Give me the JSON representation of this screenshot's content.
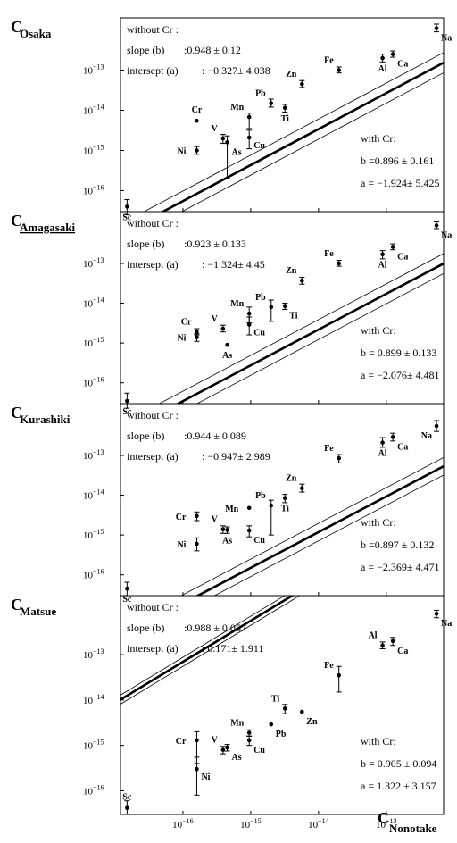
{
  "chart_data": {
    "type": "scatter",
    "x_scale": "log",
    "y_scale": "log",
    "x_axis": {
      "label": "C",
      "label_sub": "Nonotake",
      "ticks": [
        {
          "base": "10",
          "exp": "−16",
          "value": 1e-16
        },
        {
          "base": "10",
          "exp": "−15",
          "value": 1e-15
        },
        {
          "base": "10",
          "exp": "−14",
          "value": 1e-14
        },
        {
          "base": "10",
          "exp": "−13",
          "value": 1e-13
        }
      ],
      "range": [
        1.2e-17,
        7e-13
      ]
    },
    "y_ticks": [
      {
        "base": "10",
        "exp": "−16",
        "value": 1e-16
      },
      {
        "base": "10",
        "exp": "−15",
        "value": 1e-15
      },
      {
        "base": "10",
        "exp": "−14",
        "value": 1e-14
      },
      {
        "base": "10",
        "exp": "−13",
        "value": 1e-13
      }
    ],
    "y_range": [
      3e-17,
      2e-12
    ],
    "x_elements": {
      "Sc": 1.5e-17,
      "Ni": 1.6e-16,
      "Cr": 1.6e-16,
      "V": 3.9e-16,
      "As": 4.5e-16,
      "Cu": 9.5e-16,
      "Mn": 9.5e-16,
      "Pb": 2e-15,
      "Ti": 3.2e-15,
      "Zn": 5.7e-15,
      "Fe": 2e-14,
      "Al": 8.8e-14,
      "Ca": 1.25e-13,
      "Na": 5.5e-13
    },
    "panels": [
      {
        "ylabel": "C",
        "ylabel_sub": "Osaka",
        "ylabel_underline": false,
        "without_cr": {
          "title": "without Cr :",
          "slope_label": "slope (b)",
          "slope_val": ":0.948  ± 0.12",
          "intercept_label": "intersept (a)",
          "intercept_val": ": −0.327± 4.038"
        },
        "with_cr": {
          "title": "with Cr:",
          "b_line": "b =0.896  ± 0.161",
          "a_line": "a = −1.924± 5.425"
        },
        "fit": {
          "b": 0.896,
          "a": -1.924,
          "band_dex": 0.25
        },
        "points": [
          {
            "el": "Sc",
            "y": 4e-17,
            "lo": 2.5e-17,
            "hi": 6e-17,
            "lp": "below"
          },
          {
            "el": "Ni",
            "y": 1e-15,
            "lo": 8e-16,
            "hi": 1.25e-15,
            "lp": "left"
          },
          {
            "el": "Cr",
            "y": 5.5e-15,
            "lo": null,
            "hi": null,
            "lp": "above"
          },
          {
            "el": "V",
            "y": 2e-15,
            "lo": 1.5e-15,
            "hi": 2.5e-15,
            "lp": "left-up"
          },
          {
            "el": "As",
            "y": 1.6e-15,
            "lo": 2e-16,
            "hi": 2.3e-15,
            "lp": "below-right"
          },
          {
            "el": "Cu",
            "y": 2.1e-15,
            "lo": 1.1e-15,
            "hi": 3.2e-15,
            "lp": "right-down"
          },
          {
            "el": "Mn",
            "y": 6.8e-15,
            "lo": 3.5e-15,
            "hi": 8.5e-15,
            "lp": "left-up"
          },
          {
            "el": "Pb",
            "y": 1.5e-14,
            "lo": 1.2e-14,
            "hi": 1.9e-14,
            "lp": "left-up"
          },
          {
            "el": "Ti",
            "y": 1.15e-14,
            "lo": 9e-15,
            "hi": 1.4e-14,
            "lp": "below"
          },
          {
            "el": "Zn",
            "y": 4.5e-14,
            "lo": 3.7e-14,
            "hi": 5.5e-14,
            "lp": "left-up"
          },
          {
            "el": "Fe",
            "y": 1e-13,
            "lo": 8.5e-14,
            "hi": 1.2e-13,
            "lp": "left-up"
          },
          {
            "el": "Al",
            "y": 2e-13,
            "lo": 1.6e-13,
            "hi": 2.5e-13,
            "lp": "below"
          },
          {
            "el": "Ca",
            "y": 2.5e-13,
            "lo": 2.1e-13,
            "hi": 3e-13,
            "lp": "below-right"
          },
          {
            "el": "Na",
            "y": 1.1e-12,
            "lo": 9e-13,
            "hi": 1.4e-12,
            "lp": "below-right"
          }
        ]
      },
      {
        "ylabel": "C",
        "ylabel_sub": "Amagasaki",
        "ylabel_underline": true,
        "without_cr": {
          "title": "without Cr :",
          "slope_label": "slope (b)",
          "slope_val": ":0.923  ± 0.133",
          "intercept_label": "intersept (a)",
          "intercept_val": ": −1.324± 4.45"
        },
        "with_cr": {
          "title": "with Cr:",
          "b_line": "b = 0.899  ± 0.133",
          "a_line": "a = −2.076± 4.481"
        },
        "fit": {
          "b": 0.899,
          "a": -2.076,
          "band_dex": 0.25
        },
        "points": [
          {
            "el": "Sc",
            "y": 3.5e-17,
            "lo": 2.3e-17,
            "hi": 5.5e-17,
            "lp": "below"
          },
          {
            "el": "Ni",
            "y": 1.4e-15,
            "lo": 1.1e-15,
            "hi": 1.7e-15,
            "lp": "left"
          },
          {
            "el": "Cr",
            "y": 1.9e-15,
            "lo": 1.6e-15,
            "hi": 2.3e-15,
            "lp": "left-up"
          },
          {
            "el": "V",
            "y": 2.3e-15,
            "lo": 1.9e-15,
            "hi": 2.8e-15,
            "lp": "left-up"
          },
          {
            "el": "As",
            "y": 9e-16,
            "lo": null,
            "hi": null,
            "lp": "below"
          },
          {
            "el": "Cu",
            "y": 2.9e-15,
            "lo": 1.6e-15,
            "hi": 4.5e-15,
            "lp": "right-down"
          },
          {
            "el": "Mn",
            "y": 5.5e-15,
            "lo": 3.2e-15,
            "hi": 8e-15,
            "lp": "left-up"
          },
          {
            "el": "Pb",
            "y": 8e-15,
            "lo": 3.5e-15,
            "hi": 1.2e-14,
            "lp": "left-up"
          },
          {
            "el": "Ti",
            "y": 8.5e-15,
            "lo": 7e-15,
            "hi": 1e-14,
            "lp": "below-right"
          },
          {
            "el": "Zn",
            "y": 3.7e-14,
            "lo": 3e-14,
            "hi": 4.5e-14,
            "lp": "left-up"
          },
          {
            "el": "Fe",
            "y": 1e-13,
            "lo": 8.5e-14,
            "hi": 1.2e-13,
            "lp": "left-up"
          },
          {
            "el": "Al",
            "y": 1.7e-13,
            "lo": 1.3e-13,
            "hi": 2.1e-13,
            "lp": "below"
          },
          {
            "el": "Ca",
            "y": 2.6e-13,
            "lo": 2.2e-13,
            "hi": 3.1e-13,
            "lp": "below-right"
          },
          {
            "el": "Na",
            "y": 9e-13,
            "lo": 7.5e-13,
            "hi": 1.1e-12,
            "lp": "below-right"
          }
        ]
      },
      {
        "ylabel": "C",
        "ylabel_sub": "Kurashiki",
        "ylabel_underline": false,
        "without_cr": {
          "title": "without Cr :",
          "slope_label": "slope (b)",
          "slope_val": ":0.944  ± 0.089",
          "intercept_label": "intersept (a)",
          "intercept_val": ": −0.947± 2.989"
        },
        "with_cr": {
          "title": "with Cr:",
          "b_line": "b =0.897  ± 0.132",
          "a_line": "a = −2.369± 4.471"
        },
        "fit": {
          "b": 0.897,
          "a": -2.369,
          "band_dex": 0.22
        },
        "points": [
          {
            "el": "Sc",
            "y": 4.5e-17,
            "lo": 3e-17,
            "hi": 6.5e-17,
            "lp": "below"
          },
          {
            "el": "Ni",
            "y": 6e-16,
            "lo": 4e-16,
            "hi": 8.5e-16,
            "lp": "left"
          },
          {
            "el": "Cr",
            "y": 3e-15,
            "lo": 2.3e-15,
            "hi": 3.8e-15,
            "lp": "left"
          },
          {
            "el": "V",
            "y": 1.4e-15,
            "lo": 1.1e-15,
            "hi": 1.7e-15,
            "lp": "left-up"
          },
          {
            "el": "As",
            "y": 1.35e-15,
            "lo": 1.1e-15,
            "hi": 1.6e-15,
            "lp": "below"
          },
          {
            "el": "Cu",
            "y": 1.3e-15,
            "lo": 9e-16,
            "hi": 1.7e-15,
            "lp": "below-right"
          },
          {
            "el": "Mn",
            "y": 4.8e-15,
            "lo": null,
            "hi": null,
            "lp": "left"
          },
          {
            "el": "Pb",
            "y": 5.5e-15,
            "lo": 1e-15,
            "hi": 7.5e-15,
            "lp": "left-up"
          },
          {
            "el": "Ti",
            "y": 8.5e-15,
            "lo": 6.5e-15,
            "hi": 1.05e-14,
            "lp": "below"
          },
          {
            "el": "Zn",
            "y": 1.5e-14,
            "lo": 1.2e-14,
            "hi": 1.9e-14,
            "lp": "left-up"
          },
          {
            "el": "Fe",
            "y": 8.5e-14,
            "lo": 6.5e-14,
            "hi": 1.05e-13,
            "lp": "left-up"
          },
          {
            "el": "Al",
            "y": 2.1e-13,
            "lo": 1.6e-13,
            "hi": 2.8e-13,
            "lp": "below"
          },
          {
            "el": "Ca",
            "y": 2.9e-13,
            "lo": 2.3e-13,
            "hi": 3.6e-13,
            "lp": "below-right"
          },
          {
            "el": "Na",
            "y": 5.5e-13,
            "lo": 4e-13,
            "hi": 7.5e-13,
            "lp": "below-left"
          }
        ]
      },
      {
        "ylabel": "C",
        "ylabel_sub": "Matsue",
        "ylabel_underline": false,
        "without_cr": {
          "title": "without Cr :",
          "slope_label": "slope (b)",
          "slope_val": ":0.988  ± 0.057",
          "intercept_label": "intersept (a)",
          "intercept_val": ": 0.171± 1.911"
        },
        "with_cr": {
          "title": "with Cr:",
          "b_line": "b = 0.905  ± 0.094",
          "a_line": "a = 1.322  ± 3.157"
        },
        "fit": {
          "b": 0.905,
          "a": 1.322,
          "band_dex": 0.1
        },
        "points": [
          {
            "el": "Sc",
            "y": 4.2e-17,
            "lo": 3e-17,
            "hi": 6e-17,
            "lp": "above"
          },
          {
            "el": "Ni",
            "y": 3e-16,
            "lo": 8e-17,
            "hi": 5.5e-16,
            "lp": "right-down"
          },
          {
            "el": "Cr",
            "y": 1.3e-15,
            "lo": 4e-16,
            "hi": 2e-15,
            "lp": "left"
          },
          {
            "el": "V",
            "y": 8e-16,
            "lo": 6.5e-16,
            "hi": 9.5e-16,
            "lp": "left-up"
          },
          {
            "el": "As",
            "y": 9e-16,
            "lo": 7.5e-16,
            "hi": 1.05e-15,
            "lp": "below-right"
          },
          {
            "el": "Cu",
            "y": 1.3e-15,
            "lo": 1e-15,
            "hi": 1.6e-15,
            "lp": "below-right"
          },
          {
            "el": "Mn",
            "y": 1.9e-15,
            "lo": 1.6e-15,
            "hi": 2.2e-15,
            "lp": "left-up"
          },
          {
            "el": "Pb",
            "y": 2.9e-15,
            "lo": null,
            "hi": null,
            "lp": "below-right"
          },
          {
            "el": "Ti",
            "y": 6.5e-15,
            "lo": 5e-15,
            "hi": 8e-15,
            "lp": "left-up"
          },
          {
            "el": "Zn",
            "y": 5.5e-15,
            "lo": null,
            "hi": null,
            "lp": "below-right"
          },
          {
            "el": "Fe",
            "y": 3.5e-14,
            "lo": 1.5e-14,
            "hi": 5.5e-14,
            "lp": "left-up"
          },
          {
            "el": "Al",
            "y": 1.6e-13,
            "lo": 1.35e-13,
            "hi": 1.9e-13,
            "lp": "left-up"
          },
          {
            "el": "Ca",
            "y": 2e-13,
            "lo": 1.6e-13,
            "hi": 2.4e-13,
            "lp": "below-right"
          },
          {
            "el": "Na",
            "y": 8e-13,
            "lo": 6.5e-13,
            "hi": 9.5e-13,
            "lp": "below-right"
          }
        ]
      }
    ]
  }
}
